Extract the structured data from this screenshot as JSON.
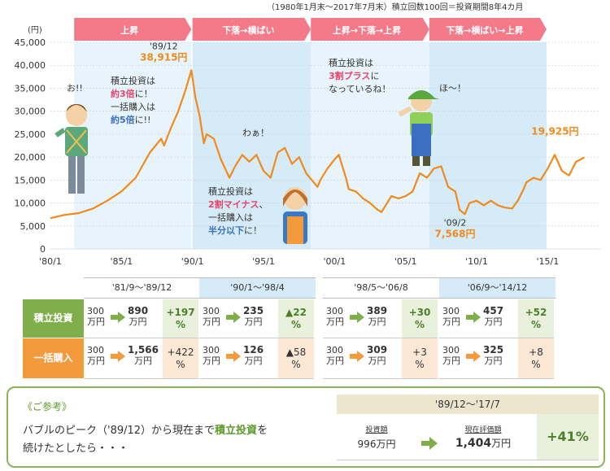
{
  "top_note": "（1980年1月末～2017年7月末）積立回数100回＝投資期間8年4カ月",
  "phases": [
    {
      "label": "上昇"
    },
    {
      "label": "下落→横ばい"
    },
    {
      "label": "上昇→下落→上昇"
    },
    {
      "label": "下落→横ばい→上昇"
    }
  ],
  "chart_data": {
    "type": "line",
    "ylabel": "(円)",
    "ylim": [
      0,
      45000
    ],
    "yticks": [
      "45,000",
      "40,000",
      "35,000",
      "30,000",
      "25,000",
      "20,000",
      "15,000",
      "10,000",
      "5,000",
      "0"
    ],
    "xticks": [
      "'80/1",
      "'85/1",
      "'90/1",
      "'95/1",
      "'00/1",
      "'05/1",
      "'10/1",
      "'15/1"
    ],
    "series": [
      {
        "x": [
          1980.0,
          1981.0,
          1982.0,
          1983.0,
          1984.0,
          1985.0,
          1986.0,
          1987.0,
          1987.8,
          1988.0,
          1988.5,
          1989.0,
          1989.5,
          1989.92,
          1990.2,
          1990.5,
          1990.8,
          1991.0,
          1991.5,
          1992.0,
          1992.6,
          1993.0,
          1993.5,
          1994.0,
          1994.5,
          1995.0,
          1995.5,
          1996.0,
          1996.5,
          1997.0,
          1997.5,
          1998.0,
          1998.8,
          1999.0,
          1999.5,
          2000.0,
          2000.3,
          2000.8,
          2001.0,
          2001.5,
          2002.0,
          2002.5,
          2003.0,
          2003.3,
          2004.0,
          2004.5,
          2005.0,
          2005.5,
          2006.0,
          2006.5,
          2007.0,
          2007.5,
          2008.0,
          2008.5,
          2008.8,
          2009.17,
          2009.5,
          2010.0,
          2010.5,
          2011.0,
          2011.5,
          2012.0,
          2012.5,
          2012.9,
          2013.3,
          2013.5,
          2014.0,
          2014.5,
          2015.0,
          2015.5,
          2016.0,
          2016.5,
          2017.0,
          2017.58
        ],
        "y": [
          6700,
          7400,
          7800,
          8800,
          10500,
          12500,
          15500,
          21000,
          24000,
          22500,
          26500,
          30000,
          34500,
          38915,
          33000,
          29000,
          23000,
          25000,
          24000,
          19500,
          15500,
          18000,
          20500,
          19000,
          20500,
          17000,
          15500,
          21000,
          22000,
          18500,
          20000,
          16500,
          13500,
          15000,
          17500,
          19500,
          20500,
          15500,
          13000,
          12500,
          11000,
          10000,
          8600,
          8000,
          11500,
          11000,
          11500,
          12500,
          16500,
          15500,
          17500,
          18000,
          13500,
          12500,
          8500,
          7568,
          10000,
          10500,
          9500,
          10500,
          9500,
          9000,
          8800,
          10500,
          13000,
          14500,
          15500,
          15000,
          17500,
          20500,
          17000,
          16000,
          19000,
          19925
        ]
      }
    ],
    "annotations": [
      {
        "label": "'89/12",
        "value": "38,915円"
      },
      {
        "label": "'09/2",
        "value": "7,568円"
      },
      {
        "label": "",
        "value": "19,925円"
      }
    ]
  },
  "bubbles": {
    "b1_line1": "積立投資は",
    "b1_hl1": "約3倍",
    "b1_line2": "に！",
    "b1_line3": "一括購入は",
    "b1_hl2": "約5倍",
    "b1_line4": "に!!",
    "b2_line1": "積立投資は",
    "b2_hl1": "2割マイナス",
    "b2_line2": "、",
    "b2_line3": "一括購入は",
    "b2_hl2": "半分以下",
    "b2_line4": "に！",
    "b3_line1": "積立投資は",
    "b3_hl1": "3割プラス",
    "b3_line2": "に",
    "b3_line3": "なっているね！",
    "ex1": "お!!",
    "ex2": "わぁ！",
    "ex3": "ほ～！"
  },
  "table": {
    "periods": [
      "'81/9～'89/12",
      "'90/1～'98/4",
      "'98/5～'06/8",
      "'06/9～'14/12"
    ],
    "row_labels": {
      "tsumitate": "積立投資",
      "ikkatsu": "一括購入"
    },
    "from_value": "300",
    "unit": "万円",
    "tsumitate": [
      {
        "to": "890",
        "pct_top": "+197",
        "pct_bot": "%"
      },
      {
        "to": "235",
        "pct_top": "▲22",
        "pct_bot": "%"
      },
      {
        "to": "389",
        "pct_top": "+30",
        "pct_bot": "%"
      },
      {
        "to": "457",
        "pct_top": "+52",
        "pct_bot": "%"
      }
    ],
    "ikkatsu": [
      {
        "to": "1,566",
        "pct_top": "+422",
        "pct_bot": "%"
      },
      {
        "to": "126",
        "pct_top": "▲58",
        "pct_bot": "%"
      },
      {
        "to": "309",
        "pct_top": "+3",
        "pct_bot": "%"
      },
      {
        "to": "325",
        "pct_top": "+8",
        "pct_bot": "%"
      }
    ]
  },
  "reference": {
    "title": "《ご参考》",
    "text_line1_a": "バブルのピーク（'89/12）から現在まで",
    "text_line1_hl": "積立投資",
    "text_line1_b": "を",
    "text_line2": "続けたとしたら・・・",
    "period": "'89/12～'17/7",
    "invest_label": "投資額",
    "invest_value": "996万円",
    "current_label": "現在評価額",
    "current_value": "1,404",
    "current_unit": "万円",
    "result": "+41%"
  },
  "colors": {
    "line": "#f08a1c",
    "phase_header": "#f47a8a",
    "highlight_band": "#dff0fb",
    "tsumitate_green": "#7fae4a",
    "ikkatsu_orange": "#f39a3d",
    "pink_text": "#e8436a",
    "blue_text": "#3a6fc4",
    "ref_border": "#8cb35a"
  }
}
